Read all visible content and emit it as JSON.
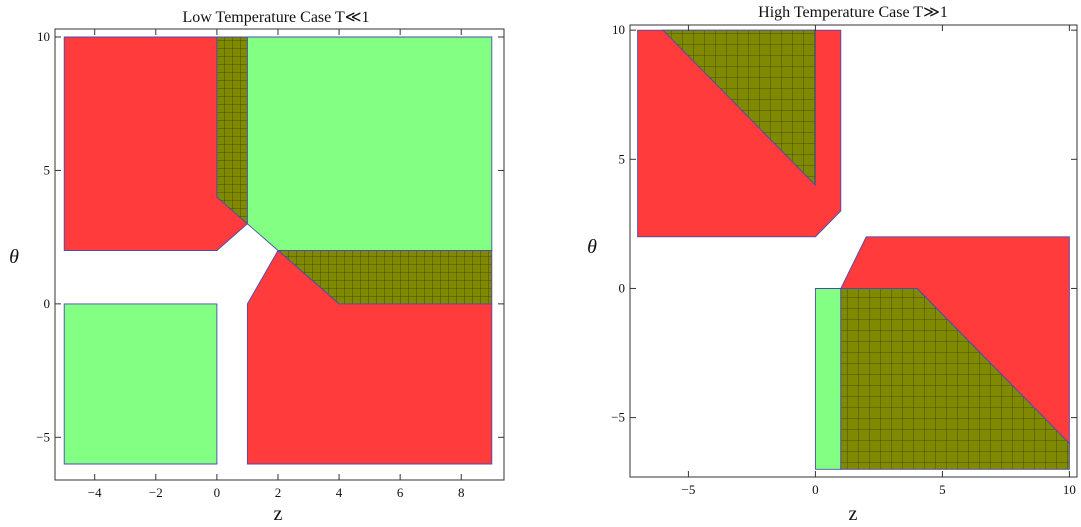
{
  "colors": {
    "red": "#ff3b3b",
    "green": "#83ff83",
    "hatch_fill": "#7f8a00",
    "hatch_line": "#3a3d00",
    "region_edge": "#4b4bb0"
  },
  "chart_data": [
    {
      "type": "region",
      "title": "Low Temperature Case T≪1",
      "xlabel": "z",
      "ylabel": "θ",
      "xlim": [
        -5.3,
        9.4
      ],
      "ylim": [
        -6.6,
        10.3
      ],
      "xticks": [
        -4,
        -2,
        0,
        2,
        4,
        6,
        8
      ],
      "xtick_labels": [
        "−4",
        "−2",
        "0",
        "2",
        "4",
        "6",
        "8"
      ],
      "yticks": [
        -5,
        0,
        5,
        10
      ],
      "ytick_labels": [
        "−5",
        "0",
        "5",
        "10"
      ],
      "regions": [
        {
          "color": "red",
          "points": [
            [
              -5,
              10
            ],
            [
              0,
              10
            ],
            [
              0,
              4
            ],
            [
              1,
              3
            ],
            [
              0,
              2
            ],
            [
              -5,
              2
            ]
          ]
        },
        {
          "color": "hatch",
          "points": [
            [
              0,
              10
            ],
            [
              1,
              10
            ],
            [
              1,
              3
            ],
            [
              0,
              4
            ]
          ]
        },
        {
          "color": "green",
          "points": [
            [
              1,
              10
            ],
            [
              9,
              10
            ],
            [
              9,
              2
            ],
            [
              2,
              2
            ],
            [
              1,
              3
            ]
          ]
        },
        {
          "color": "hatch",
          "points": [
            [
              2,
              2
            ],
            [
              9,
              2
            ],
            [
              9,
              0
            ],
            [
              4,
              0
            ]
          ]
        },
        {
          "color": "red",
          "points": [
            [
              2,
              2
            ],
            [
              4,
              0
            ],
            [
              9,
              0
            ],
            [
              9,
              -6
            ],
            [
              1,
              -6
            ],
            [
              1,
              0
            ]
          ]
        },
        {
          "color": "green",
          "points": [
            [
              -5,
              0
            ],
            [
              0,
              0
            ],
            [
              0,
              -6
            ],
            [
              -5,
              -6
            ]
          ]
        }
      ]
    },
    {
      "type": "region",
      "title": "High Temperature Case T≫1",
      "xlabel": "z",
      "ylabel": "θ",
      "xlim": [
        -7.3,
        10.3
      ],
      "ylim": [
        -7.3,
        10.2
      ],
      "xticks": [
        -5,
        0,
        5,
        10
      ],
      "xtick_labels": [
        "−5",
        "0",
        "5",
        "10"
      ],
      "yticks": [
        -5,
        0,
        5,
        10
      ],
      "ytick_labels": [
        "−5",
        "0",
        "5",
        "10"
      ],
      "regions": [
        {
          "color": "red",
          "points": [
            [
              -7,
              10
            ],
            [
              1,
              10
            ],
            [
              1,
              3
            ],
            [
              0,
              2
            ],
            [
              -7,
              2
            ]
          ]
        },
        {
          "color": "hatch",
          "points": [
            [
              -6,
              10
            ],
            [
              0,
              10
            ],
            [
              0,
              4
            ]
          ]
        },
        {
          "color": "red",
          "points": [
            [
              2,
              2
            ],
            [
              10,
              2
            ],
            [
              10,
              -6
            ],
            [
              4,
              0
            ],
            [
              1,
              0
            ]
          ]
        },
        {
          "color": "green",
          "points": [
            [
              0,
              0
            ],
            [
              1,
              0
            ],
            [
              1,
              -7
            ],
            [
              0,
              -7
            ]
          ]
        },
        {
          "color": "hatch",
          "points": [
            [
              1,
              0
            ],
            [
              4,
              0
            ],
            [
              10,
              -6
            ],
            [
              10,
              -7
            ],
            [
              1,
              -7
            ]
          ]
        }
      ]
    }
  ]
}
